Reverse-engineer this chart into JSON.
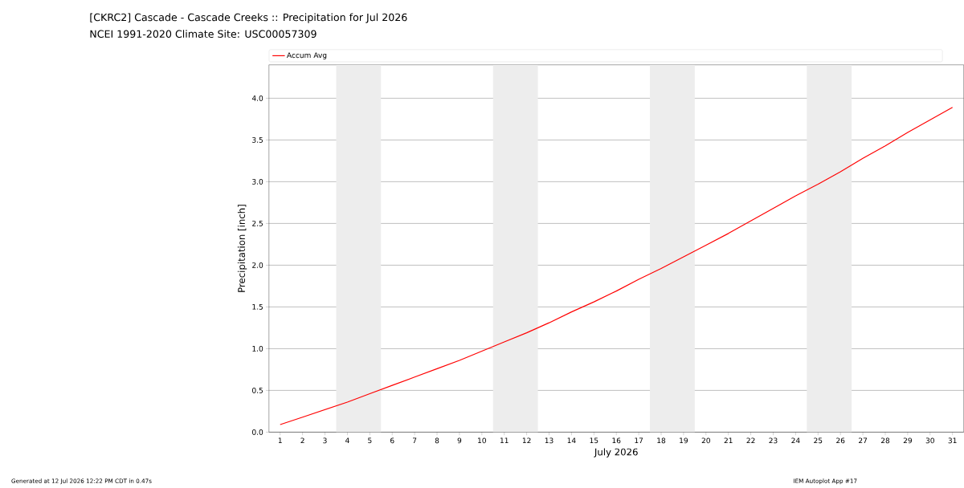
{
  "chart_data": {
    "type": "line",
    "title": "[CKRC2] Cascade - Cascade Creeks :: Precipitation for Jul 2026",
    "subtitle": "NCEI 1991-2020 Climate Site: USC00057309",
    "xlabel": "July 2026",
    "ylabel": "Precipitation [inch]",
    "annotations": [
      "Generated at 12 Jul 2026 12:22 PM CDT in 0.47s",
      "IEM Autoplot App #17"
    ],
    "x": [
      1,
      2,
      3,
      4,
      5,
      6,
      7,
      8,
      9,
      10,
      11,
      12,
      13,
      14,
      15,
      16,
      17,
      18,
      19,
      20,
      21,
      22,
      23,
      24,
      25,
      26,
      27,
      28,
      29,
      30,
      31
    ],
    "series": [
      {
        "name": "Accum Avg",
        "color": "#ff0000",
        "values": [
          0.09,
          0.18,
          0.27,
          0.36,
          0.46,
          0.56,
          0.66,
          0.76,
          0.86,
          0.97,
          1.08,
          1.19,
          1.31,
          1.44,
          1.56,
          1.69,
          1.83,
          1.96,
          2.1,
          2.24,
          2.38,
          2.53,
          2.68,
          2.83,
          2.97,
          3.12,
          3.28,
          3.43,
          3.59,
          3.74,
          3.89
        ]
      }
    ],
    "xlim": [
      0.5,
      31.5
    ],
    "ylim": [
      0,
      4.4
    ],
    "xticks": [
      1,
      2,
      3,
      4,
      5,
      6,
      7,
      8,
      9,
      10,
      11,
      12,
      13,
      14,
      15,
      16,
      17,
      18,
      19,
      20,
      21,
      22,
      23,
      24,
      25,
      26,
      27,
      28,
      29,
      30,
      31
    ],
    "yticks": [
      {
        "value": 0,
        "label": "0.0"
      },
      {
        "value": 0.5,
        "label": "0.5"
      },
      {
        "value": 1,
        "label": "1.0"
      },
      {
        "value": 1.5,
        "label": "1.5"
      },
      {
        "value": 2,
        "label": "2.0"
      },
      {
        "value": 2.5,
        "label": "2.5"
      },
      {
        "value": 3,
        "label": "3.0"
      },
      {
        "value": 3.5,
        "label": "3.5"
      },
      {
        "value": 4,
        "label": "4.0"
      }
    ],
    "bands": [
      {
        "axis": "x",
        "from": 3.5,
        "to": 5.5,
        "color": "#ededed"
      },
      {
        "axis": "x",
        "from": 10.5,
        "to": 12.5,
        "color": "#ededed"
      },
      {
        "axis": "x",
        "from": 17.5,
        "to": 19.5,
        "color": "#ededed"
      },
      {
        "axis": "x",
        "from": 24.5,
        "to": 26.5,
        "color": "#ededed"
      }
    ],
    "grid": "y",
    "legend": "top",
    "marker": "none",
    "line_style": "solid"
  }
}
